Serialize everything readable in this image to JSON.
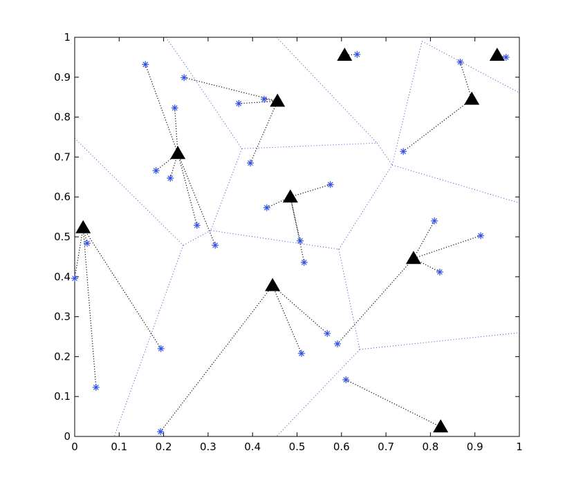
{
  "chart_data": {
    "type": "scatter",
    "xlim": [
      0,
      1
    ],
    "ylim": [
      0,
      1
    ],
    "xticks": [
      0,
      0.1,
      0.2,
      0.3,
      0.4,
      0.5,
      0.6,
      0.7,
      0.8,
      0.9,
      1
    ],
    "yticks": [
      0,
      0.1,
      0.2,
      0.3,
      0.4,
      0.5,
      0.6,
      0.7,
      0.8,
      0.9,
      1
    ],
    "series": [
      {
        "marker": "triangle",
        "color": "#000000",
        "x": [
          0.607,
          0.95,
          0.456,
          0.893,
          0.232,
          0.485,
          0.019,
          0.762,
          0.445,
          0.823
        ],
        "values": [
          0.955,
          0.955,
          0.84,
          0.845,
          0.709,
          0.6,
          0.523,
          0.446,
          0.378,
          0.024
        ]
      },
      {
        "marker": "asterisk",
        "color": "#3050e0",
        "link_color": "#000000",
        "x": [
          0.635,
          0.97,
          0.159,
          0.246,
          0.867,
          0.426,
          0.369,
          0.225,
          0.739,
          0.395,
          0.183,
          0.215,
          0.575,
          0.432,
          0.809,
          0.275,
          0.913,
          0.028,
          0.507,
          0.316,
          0.516,
          0.821,
          0.0,
          0.568,
          0.591,
          0.194,
          0.51,
          0.61,
          0.048,
          0.193
        ],
        "values": [
          0.957,
          0.95,
          0.932,
          0.899,
          0.938,
          0.845,
          0.834,
          0.823,
          0.714,
          0.685,
          0.666,
          0.647,
          0.631,
          0.573,
          0.54,
          0.529,
          0.503,
          0.484,
          0.49,
          0.479,
          0.436,
          0.412,
          0.396,
          0.258,
          0.232,
          0.22,
          0.208,
          0.142,
          0.123,
          0.012
        ],
        "assignments": [
          0,
          1,
          4,
          2,
          3,
          2,
          2,
          4,
          3,
          2,
          4,
          4,
          5,
          5,
          7,
          4,
          7,
          6,
          5,
          4,
          5,
          7,
          6,
          8,
          7,
          6,
          8,
          9,
          6,
          8
        ]
      }
    ],
    "voronoi_color": "#3344cc",
    "voronoi_edges": [
      [
        0.205,
        1.0,
        0.247,
        0.933
      ],
      [
        0.247,
        0.933,
        0.376,
        0.721
      ],
      [
        0.454,
        1.0,
        0.68,
        0.735
      ],
      [
        0.376,
        0.721,
        0.68,
        0.735
      ],
      [
        0.376,
        0.721,
        0.306,
        0.516
      ],
      [
        0.0,
        0.747,
        0.244,
        0.479
      ],
      [
        0.244,
        0.479,
        0.306,
        0.516
      ],
      [
        0.306,
        0.516,
        0.594,
        0.469
      ],
      [
        0.244,
        0.479,
        0.089,
        0.0
      ],
      [
        0.594,
        0.469,
        0.641,
        0.218
      ],
      [
        0.641,
        0.218,
        0.454,
        0.0
      ],
      [
        0.641,
        0.218,
        1.0,
        0.26
      ],
      [
        0.594,
        0.469,
        0.714,
        0.68
      ],
      [
        0.68,
        0.735,
        0.714,
        0.68
      ],
      [
        0.714,
        0.68,
        0.781,
        0.99
      ],
      [
        0.714,
        0.68,
        1.0,
        0.585
      ],
      [
        0.781,
        0.99,
        1.0,
        0.861
      ]
    ]
  }
}
